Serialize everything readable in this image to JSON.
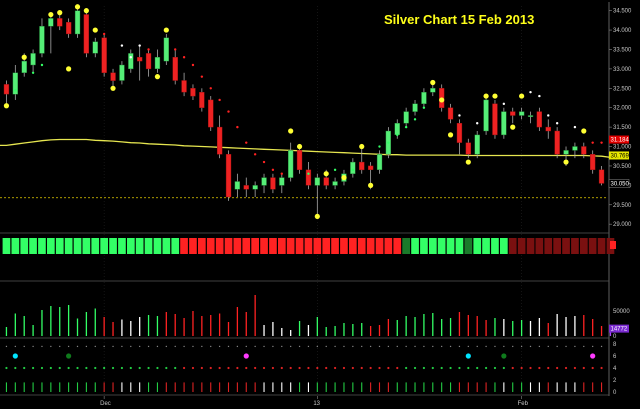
{
  "chart_data": {
    "type": "candlestick",
    "title": "Silver Chart 15 Feb 2013",
    "y_ticks": [
      "34.500",
      "34.000",
      "33.500",
      "33.000",
      "32.500",
      "32.000",
      "31.500",
      "31.000",
      "30.500",
      "30.000",
      "29.500",
      "29.000"
    ],
    "y_range": [
      28.85,
      34.62
    ],
    "x_labels": [
      {
        "label": "Dec",
        "index": 11
      },
      {
        "label": "13",
        "index": 35
      },
      {
        "label": "Feb",
        "index": 58
      }
    ],
    "price_tags": [
      {
        "value": "31.184",
        "price": 31.18,
        "color": "#e00000"
      },
      {
        "value": "30.769",
        "price": 30.77,
        "color": "#e8e800"
      },
      {
        "value": "30.050",
        "price": 30.05,
        "color": "#000000"
      }
    ],
    "support_level": 29.68,
    "moving_average": [
      31.03,
      31.06,
      31.09,
      31.12,
      31.15,
      31.17,
      31.18,
      31.18,
      31.18,
      31.18,
      31.16,
      31.15,
      31.14,
      31.12,
      31.1,
      31.09,
      31.07,
      31.06,
      31.05,
      31.04,
      31.02,
      31.01,
      31.0,
      30.99,
      30.98,
      30.97,
      30.96,
      30.95,
      30.94,
      30.93,
      30.92,
      30.91,
      30.9,
      30.89,
      30.88,
      30.87,
      30.86,
      30.85,
      30.84,
      30.83,
      30.82,
      30.81,
      30.8,
      30.79,
      30.79,
      30.78,
      30.78,
      30.78,
      30.78,
      30.78,
      30.78,
      30.78,
      30.77,
      30.77,
      30.77,
      30.77,
      30.77,
      30.77,
      30.77,
      30.77,
      30.77,
      30.77,
      30.77,
      30.77,
      30.77,
      30.77,
      30.76,
      30.75,
      30.72
    ],
    "candles": [
      {
        "o": 32.6,
        "h": 32.7,
        "l": 32.1,
        "c": 32.35,
        "dot": 32.05,
        "dc": "y"
      },
      {
        "o": 32.35,
        "h": 33.1,
        "l": 32.2,
        "c": 32.9,
        "dot": 32.45,
        "dc": "g"
      },
      {
        "o": 32.9,
        "h": 33.4,
        "l": 32.8,
        "c": 33.2,
        "dot": 33.3,
        "dc": "y"
      },
      {
        "o": 33.1,
        "h": 33.5,
        "l": 32.9,
        "c": 33.4,
        "dot": 32.9,
        "dc": "g"
      },
      {
        "o": 33.4,
        "h": 34.3,
        "l": 33.3,
        "c": 34.1,
        "dot": 33.1,
        "dc": "g"
      },
      {
        "o": 34.1,
        "h": 34.4,
        "l": 33.4,
        "c": 34.3,
        "dot": 34.4,
        "dc": "y"
      },
      {
        "o": 34.3,
        "h": 34.4,
        "l": 34.0,
        "c": 34.1,
        "dot": 34.45,
        "dc": "y"
      },
      {
        "o": 34.2,
        "h": 34.3,
        "l": 33.8,
        "c": 33.9,
        "dot": 33.0,
        "dc": "y"
      },
      {
        "o": 33.9,
        "h": 34.6,
        "l": 33.8,
        "c": 34.5,
        "dot": 34.6,
        "dc": "y"
      },
      {
        "o": 34.4,
        "h": 34.5,
        "l": 33.3,
        "c": 33.4,
        "dot": 34.5,
        "dc": "y"
      },
      {
        "o": 33.4,
        "h": 33.8,
        "l": 33.3,
        "c": 33.7,
        "dot": 34.0,
        "dc": "y"
      },
      {
        "o": 33.8,
        "h": 33.9,
        "l": 32.8,
        "c": 32.9,
        "dot": 33.9,
        "dc": "r"
      },
      {
        "o": 32.9,
        "h": 33.0,
        "l": 32.5,
        "c": 32.7,
        "dot": 32.5,
        "dc": "y"
      },
      {
        "o": 32.7,
        "h": 33.2,
        "l": 32.6,
        "c": 33.1,
        "dot": 33.6,
        "dc": "w"
      },
      {
        "o": 33.0,
        "h": 33.5,
        "l": 32.9,
        "c": 33.4,
        "dot": 33.3,
        "dc": "w"
      },
      {
        "o": 33.3,
        "h": 33.6,
        "l": 32.7,
        "c": 33.2,
        "dot": 33.6,
        "dc": "w"
      },
      {
        "o": 33.4,
        "h": 33.5,
        "l": 32.8,
        "c": 33.0,
        "dot": 33.5,
        "dc": "r"
      },
      {
        "o": 33.0,
        "h": 33.5,
        "l": 32.9,
        "c": 33.3,
        "dot": 32.8,
        "dc": "y"
      },
      {
        "o": 33.2,
        "h": 33.9,
        "l": 33.1,
        "c": 33.8,
        "dot": 34.0,
        "dc": "y"
      },
      {
        "o": 33.3,
        "h": 33.5,
        "l": 32.6,
        "c": 32.7,
        "dot": 33.5,
        "dc": "r"
      },
      {
        "o": 32.7,
        "h": 32.9,
        "l": 32.3,
        "c": 32.4,
        "dot": 33.3,
        "dc": "r"
      },
      {
        "o": 32.5,
        "h": 32.6,
        "l": 32.2,
        "c": 32.3,
        "dot": 33.1,
        "dc": "r"
      },
      {
        "o": 32.4,
        "h": 32.5,
        "l": 31.9,
        "c": 32.0,
        "dot": 32.8,
        "dc": "r"
      },
      {
        "o": 32.2,
        "h": 32.3,
        "l": 31.4,
        "c": 31.5,
        "dot": 32.5,
        "dc": "r"
      },
      {
        "o": 31.5,
        "h": 31.8,
        "l": 30.7,
        "c": 30.8,
        "dot": 32.2,
        "dc": "r"
      },
      {
        "o": 30.8,
        "h": 30.9,
        "l": 29.6,
        "c": 29.7,
        "dot": 31.9,
        "dc": "r"
      },
      {
        "o": 29.9,
        "h": 30.3,
        "l": 29.7,
        "c": 30.1,
        "dot": 31.5,
        "dc": "r"
      },
      {
        "o": 30.0,
        "h": 30.2,
        "l": 29.7,
        "c": 29.9,
        "dot": 31.1,
        "dc": "r"
      },
      {
        "o": 29.9,
        "h": 30.1,
        "l": 29.7,
        "c": 30.0,
        "dot": 30.8,
        "dc": "r"
      },
      {
        "o": 30.0,
        "h": 30.3,
        "l": 29.8,
        "c": 30.2,
        "dot": 30.6,
        "dc": "r"
      },
      {
        "o": 30.2,
        "h": 30.3,
        "l": 29.8,
        "c": 29.9,
        "dot": 30.4,
        "dc": "r"
      },
      {
        "o": 30.0,
        "h": 30.3,
        "l": 29.8,
        "c": 30.2,
        "dot": 30.3,
        "dc": "r"
      },
      {
        "o": 30.2,
        "h": 31.1,
        "l": 30.1,
        "c": 30.9,
        "dot": 31.4,
        "dc": "y"
      },
      {
        "o": 30.9,
        "h": 31.0,
        "l": 30.3,
        "c": 30.4,
        "dot": 31.0,
        "dc": "y"
      },
      {
        "o": 30.4,
        "h": 30.6,
        "l": 29.9,
        "c": 30.0,
        "dot": 30.3,
        "dc": "g"
      },
      {
        "o": 30.0,
        "h": 30.3,
        "l": 29.2,
        "c": 30.2,
        "dot": 29.2,
        "dc": "y"
      },
      {
        "o": 30.2,
        "h": 30.4,
        "l": 29.9,
        "c": 30.0,
        "dot": 30.3,
        "dc": "y"
      },
      {
        "o": 30.0,
        "h": 30.2,
        "l": 29.9,
        "c": 30.1,
        "dot": 30.4,
        "dc": "g"
      },
      {
        "o": 30.1,
        "h": 30.4,
        "l": 30.0,
        "c": 30.3,
        "dot": 30.2,
        "dc": "y"
      },
      {
        "o": 30.3,
        "h": 30.7,
        "l": 30.2,
        "c": 30.6,
        "dot": 30.4,
        "dc": "g"
      },
      {
        "o": 30.6,
        "h": 31.0,
        "l": 30.3,
        "c": 30.4,
        "dot": 31.0,
        "dc": "y"
      },
      {
        "o": 30.5,
        "h": 30.6,
        "l": 29.9,
        "c": 30.4,
        "dot": 30.0,
        "dc": "y"
      },
      {
        "o": 30.4,
        "h": 30.9,
        "l": 30.3,
        "c": 30.8,
        "dot": 31.0,
        "dc": "g"
      },
      {
        "o": 30.8,
        "h": 31.5,
        "l": 30.7,
        "c": 31.4,
        "dot": 31.1,
        "dc": "g"
      },
      {
        "o": 31.3,
        "h": 31.7,
        "l": 31.2,
        "c": 31.6,
        "dot": 31.3,
        "dc": "g"
      },
      {
        "o": 31.6,
        "h": 32.0,
        "l": 31.5,
        "c": 31.9,
        "dot": 31.5,
        "dc": "g"
      },
      {
        "o": 31.9,
        "h": 32.2,
        "l": 31.8,
        "c": 32.1,
        "dot": 31.7,
        "dc": "g"
      },
      {
        "o": 32.1,
        "h": 32.5,
        "l": 32.0,
        "c": 32.4,
        "dot": 32.0,
        "dc": "g"
      },
      {
        "o": 32.4,
        "h": 32.6,
        "l": 32.3,
        "c": 32.5,
        "dot": 32.65,
        "dc": "y"
      },
      {
        "o": 32.5,
        "h": 32.6,
        "l": 31.9,
        "c": 32.0,
        "dot": 32.2,
        "dc": "y"
      },
      {
        "o": 32.0,
        "h": 32.1,
        "l": 31.6,
        "c": 31.7,
        "dot": 31.3,
        "dc": "y"
      },
      {
        "o": 31.6,
        "h": 31.7,
        "l": 30.8,
        "c": 31.1,
        "dot": 31.8,
        "dc": "w"
      },
      {
        "o": 31.1,
        "h": 31.2,
        "l": 30.7,
        "c": 30.8,
        "dot": 30.6,
        "dc": "y"
      },
      {
        "o": 30.8,
        "h": 31.4,
        "l": 30.7,
        "c": 31.3,
        "dot": 31.6,
        "dc": "w"
      },
      {
        "o": 31.4,
        "h": 32.3,
        "l": 31.3,
        "c": 32.2,
        "dot": 32.3,
        "dc": "y"
      },
      {
        "o": 32.1,
        "h": 32.2,
        "l": 31.2,
        "c": 31.3,
        "dot": 32.3,
        "dc": "y"
      },
      {
        "o": 31.3,
        "h": 32.0,
        "l": 31.2,
        "c": 31.9,
        "dot": 32.1,
        "dc": "w"
      },
      {
        "o": 31.9,
        "h": 32.0,
        "l": 31.6,
        "c": 31.8,
        "dot": 31.5,
        "dc": "y"
      },
      {
        "o": 31.8,
        "h": 32.0,
        "l": 31.7,
        "c": 31.9,
        "dot": 32.3,
        "dc": "y"
      },
      {
        "o": 31.8,
        "h": 31.9,
        "l": 31.6,
        "c": 31.8,
        "dot": 32.4,
        "dc": "w"
      },
      {
        "o": 31.9,
        "h": 32.0,
        "l": 31.4,
        "c": 31.5,
        "dot": 32.3,
        "dc": "w"
      },
      {
        "o": 31.5,
        "h": 31.7,
        "l": 31.2,
        "c": 31.4,
        "dot": 31.8,
        "dc": "w"
      },
      {
        "o": 31.4,
        "h": 31.5,
        "l": 30.7,
        "c": 30.8,
        "dot": 31.6,
        "dc": "w"
      },
      {
        "o": 30.8,
        "h": 31.0,
        "l": 30.5,
        "c": 30.9,
        "dot": 30.6,
        "dc": "y"
      },
      {
        "o": 30.9,
        "h": 31.1,
        "l": 30.7,
        "c": 31.0,
        "dot": 31.5,
        "dc": "w"
      },
      {
        "o": 31.0,
        "h": 31.1,
        "l": 30.7,
        "c": 30.8,
        "dot": 31.4,
        "dc": "y"
      },
      {
        "o": 30.8,
        "h": 30.9,
        "l": 30.3,
        "c": 30.4,
        "dot": 31.1,
        "dc": "r"
      },
      {
        "o": 30.4,
        "h": 30.5,
        "l": 30.0,
        "c": 30.05,
        "dot": 31.1,
        "dc": "r"
      }
    ],
    "trend_bar": [
      "g",
      "g",
      "g",
      "g",
      "g",
      "g",
      "g",
      "g",
      "g",
      "g",
      "g",
      "g",
      "g",
      "g",
      "g",
      "g",
      "g",
      "g",
      "g",
      "g",
      "r",
      "r",
      "r",
      "r",
      "r",
      "r",
      "r",
      "r",
      "r",
      "r",
      "r",
      "r",
      "r",
      "r",
      "r",
      "r",
      "r",
      "r",
      "r",
      "r",
      "r",
      "r",
      "r",
      "r",
      "r",
      "dg",
      "g",
      "g",
      "g",
      "g",
      "g",
      "g",
      "dg",
      "g",
      "g",
      "g",
      "g",
      "dr",
      "dr",
      "dr",
      "dr",
      "dr",
      "dr",
      "dr",
      "dr",
      "dr",
      "dr",
      "dr",
      "dr"
    ],
    "volume": {
      "y_ticks": [
        "50000",
        "0"
      ],
      "y_max": 100000,
      "last_value": "14772",
      "bars": [
        18000,
        45000,
        40000,
        22000,
        52000,
        60000,
        58000,
        62000,
        35000,
        48000,
        55000,
        38000,
        28000,
        33000,
        30000,
        38000,
        42000,
        40000,
        48000,
        44000,
        36000,
        50000,
        40000,
        42000,
        45000,
        28000,
        58000,
        48000,
        82000,
        22000,
        28000,
        16000,
        12000,
        30000,
        22000,
        38000,
        18000,
        20000,
        26000,
        24000,
        26000,
        20000,
        22000,
        34000,
        32000,
        40000,
        38000,
        44000,
        46000,
        34000,
        36000,
        48000,
        42000,
        40000,
        32000,
        36000,
        34000,
        30000,
        32000,
        30000,
        36000,
        26000,
        44000,
        38000,
        40000,
        42000,
        34000,
        20000,
        14772
      ],
      "colors": [
        "g",
        "g",
        "g",
        "g",
        "g",
        "g",
        "g",
        "g",
        "g",
        "g",
        "g",
        "r",
        "r",
        "w",
        "w",
        "w",
        "g",
        "g",
        "r",
        "r",
        "r",
        "r",
        "r",
        "r",
        "r",
        "r",
        "r",
        "r",
        "r",
        "w",
        "w",
        "w",
        "w",
        "g",
        "w",
        "g",
        "g",
        "g",
        "g",
        "g",
        "g",
        "r",
        "r",
        "r",
        "g",
        "g",
        "g",
        "g",
        "g",
        "g",
        "g",
        "r",
        "r",
        "r",
        "r",
        "g",
        "w",
        "g",
        "g",
        "w",
        "w",
        "r",
        "w",
        "w",
        "w",
        "r",
        "r",
        "r",
        "p"
      ]
    },
    "indicator": {
      "y_ticks": [
        "8",
        "6",
        "4",
        "2",
        "0"
      ],
      "markers": [
        {
          "index": 1,
          "color": "#00e5ff"
        },
        {
          "index": 7,
          "color": "#0f7a1c"
        },
        {
          "index": 27,
          "color": "#ff3bff"
        },
        {
          "index": 52,
          "color": "#00e5ff"
        },
        {
          "index": 56,
          "color": "#0f7a1c"
        },
        {
          "index": 77,
          "color": "#ff3bff"
        }
      ]
    }
  }
}
